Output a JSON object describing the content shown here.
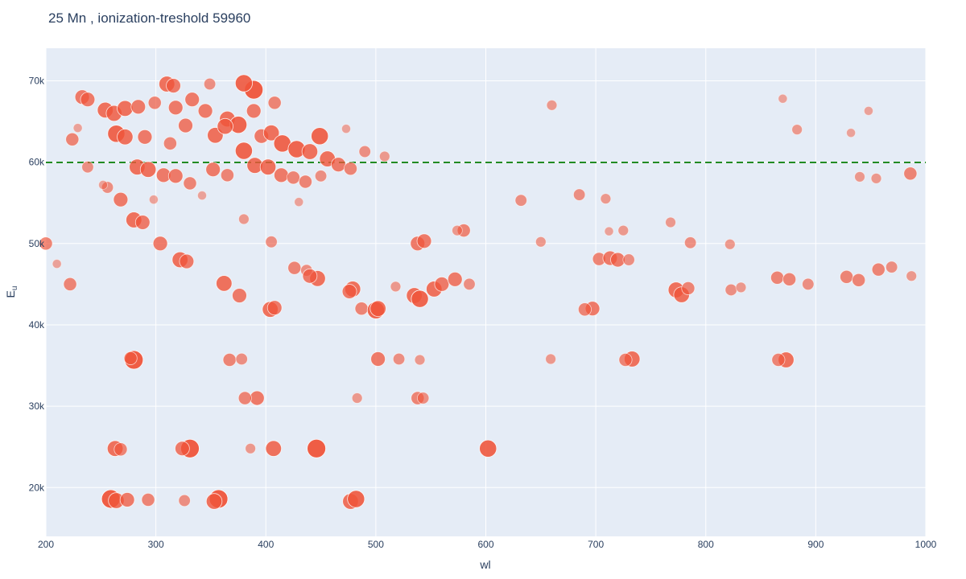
{
  "chart_data": {
    "type": "scatter",
    "title": "25 Mn , ionization-treshold 59960",
    "xlabel": "wl",
    "ylabel": "E",
    "ylabel_subscript": "u",
    "xlim": [
      200,
      1000
    ],
    "ylim": [
      14000,
      74000
    ],
    "x_ticks": [
      200,
      300,
      400,
      500,
      600,
      700,
      800,
      900,
      1000
    ],
    "x_tick_labels": [
      "200",
      "300",
      "400",
      "500",
      "600",
      "700",
      "800",
      "900",
      "1000"
    ],
    "y_ticks": [
      20000,
      30000,
      40000,
      50000,
      60000,
      70000
    ],
    "y_tick_labels": [
      "20k",
      "30k",
      "40k",
      "50k",
      "60k",
      "70k"
    ],
    "grid": true,
    "legend": "none",
    "threshold_line": {
      "y": 59960,
      "style": "dashed"
    },
    "colors": {
      "marker": "#EF553B",
      "threshold": "#228B22",
      "plot_bg": "#E5ECF6",
      "grid": "#ffffff",
      "text": "#2a3f5f"
    },
    "series": [
      {
        "points": [
          {
            "x": 280,
            "y": 35700,
            "s": 1.0
          },
          {
            "x": 277,
            "y": 35900,
            "s": 0.6
          },
          {
            "x": 331,
            "y": 24800,
            "s": 1.0
          },
          {
            "x": 324,
            "y": 24800,
            "s": 0.7
          },
          {
            "x": 263,
            "y": 24800,
            "s": 0.8
          },
          {
            "x": 268,
            "y": 24700,
            "s": 0.6
          },
          {
            "x": 407,
            "y": 24800,
            "s": 0.8
          },
          {
            "x": 446,
            "y": 24800,
            "s": 1.0
          },
          {
            "x": 602,
            "y": 24800,
            "s": 0.9
          },
          {
            "x": 386,
            "y": 24800,
            "s": 0.4
          },
          {
            "x": 259,
            "y": 18600,
            "s": 1.0
          },
          {
            "x": 264,
            "y": 18400,
            "s": 0.8
          },
          {
            "x": 274,
            "y": 18500,
            "s": 0.7
          },
          {
            "x": 293,
            "y": 18500,
            "s": 0.6
          },
          {
            "x": 357,
            "y": 18600,
            "s": 1.0
          },
          {
            "x": 353,
            "y": 18300,
            "s": 0.8
          },
          {
            "x": 326,
            "y": 18400,
            "s": 0.5
          },
          {
            "x": 477,
            "y": 18300,
            "s": 0.8
          },
          {
            "x": 482,
            "y": 18600,
            "s": 0.9
          },
          {
            "x": 389,
            "y": 68900,
            "s": 1.0
          },
          {
            "x": 380,
            "y": 69700,
            "s": 0.9
          },
          {
            "x": 310,
            "y": 69600,
            "s": 0.8
          },
          {
            "x": 316,
            "y": 69400,
            "s": 0.7
          },
          {
            "x": 349,
            "y": 69600,
            "s": 0.5
          },
          {
            "x": 233,
            "y": 68000,
            "s": 0.7
          },
          {
            "x": 238,
            "y": 67700,
            "s": 0.7
          },
          {
            "x": 254,
            "y": 66400,
            "s": 0.8
          },
          {
            "x": 262,
            "y": 66000,
            "s": 0.8
          },
          {
            "x": 272,
            "y": 66600,
            "s": 0.8
          },
          {
            "x": 284,
            "y": 66800,
            "s": 0.7
          },
          {
            "x": 299,
            "y": 67300,
            "s": 0.6
          },
          {
            "x": 318,
            "y": 66700,
            "s": 0.7
          },
          {
            "x": 333,
            "y": 67700,
            "s": 0.7
          },
          {
            "x": 345,
            "y": 66300,
            "s": 0.7
          },
          {
            "x": 365,
            "y": 65300,
            "s": 0.8
          },
          {
            "x": 375,
            "y": 64600,
            "s": 0.9
          },
          {
            "x": 389,
            "y": 66300,
            "s": 0.7
          },
          {
            "x": 408,
            "y": 67300,
            "s": 0.6
          },
          {
            "x": 264,
            "y": 63500,
            "s": 0.9
          },
          {
            "x": 272,
            "y": 63100,
            "s": 0.8
          },
          {
            "x": 290,
            "y": 63100,
            "s": 0.7
          },
          {
            "x": 313,
            "y": 62300,
            "s": 0.6
          },
          {
            "x": 327,
            "y": 64500,
            "s": 0.7
          },
          {
            "x": 354,
            "y": 63300,
            "s": 0.8
          },
          {
            "x": 363,
            "y": 64400,
            "s": 0.8
          },
          {
            "x": 380,
            "y": 61400,
            "s": 0.9
          },
          {
            "x": 396,
            "y": 63200,
            "s": 0.7
          },
          {
            "x": 405,
            "y": 63600,
            "s": 0.8
          },
          {
            "x": 415,
            "y": 62300,
            "s": 0.9
          },
          {
            "x": 428,
            "y": 61600,
            "s": 0.9
          },
          {
            "x": 440,
            "y": 61300,
            "s": 0.8
          },
          {
            "x": 449,
            "y": 63200,
            "s": 0.9
          },
          {
            "x": 456,
            "y": 60400,
            "s": 0.8
          },
          {
            "x": 466,
            "y": 59700,
            "s": 0.7
          },
          {
            "x": 477,
            "y": 59200,
            "s": 0.6
          },
          {
            "x": 490,
            "y": 61300,
            "s": 0.5
          },
          {
            "x": 508,
            "y": 60700,
            "s": 0.4
          },
          {
            "x": 224,
            "y": 62800,
            "s": 0.6
          },
          {
            "x": 238,
            "y": 59400,
            "s": 0.5
          },
          {
            "x": 283,
            "y": 59400,
            "s": 0.8
          },
          {
            "x": 293,
            "y": 59100,
            "s": 0.8
          },
          {
            "x": 307,
            "y": 58400,
            "s": 0.7
          },
          {
            "x": 318,
            "y": 58300,
            "s": 0.7
          },
          {
            "x": 331,
            "y": 57400,
            "s": 0.6
          },
          {
            "x": 352,
            "y": 59100,
            "s": 0.7
          },
          {
            "x": 365,
            "y": 58400,
            "s": 0.6
          },
          {
            "x": 390,
            "y": 59600,
            "s": 0.8
          },
          {
            "x": 402,
            "y": 59400,
            "s": 0.8
          },
          {
            "x": 414,
            "y": 58400,
            "s": 0.7
          },
          {
            "x": 425,
            "y": 58100,
            "s": 0.6
          },
          {
            "x": 436,
            "y": 57600,
            "s": 0.6
          },
          {
            "x": 450,
            "y": 58300,
            "s": 0.5
          },
          {
            "x": 268,
            "y": 55400,
            "s": 0.7
          },
          {
            "x": 256,
            "y": 56900,
            "s": 0.5
          },
          {
            "x": 280,
            "y": 52900,
            "s": 0.8
          },
          {
            "x": 288,
            "y": 52600,
            "s": 0.7
          },
          {
            "x": 304,
            "y": 50000,
            "s": 0.7
          },
          {
            "x": 322,
            "y": 48000,
            "s": 0.8
          },
          {
            "x": 328,
            "y": 47800,
            "s": 0.7
          },
          {
            "x": 362,
            "y": 45100,
            "s": 0.8
          },
          {
            "x": 376,
            "y": 43600,
            "s": 0.7
          },
          {
            "x": 404,
            "y": 41900,
            "s": 0.8
          },
          {
            "x": 408,
            "y": 42100,
            "s": 0.7
          },
          {
            "x": 222,
            "y": 45000,
            "s": 0.6
          },
          {
            "x": 200,
            "y": 50000,
            "s": 0.6
          },
          {
            "x": 210,
            "y": 47500,
            "s": 0.3
          },
          {
            "x": 405,
            "y": 50200,
            "s": 0.5
          },
          {
            "x": 380,
            "y": 53000,
            "s": 0.4
          },
          {
            "x": 426,
            "y": 47000,
            "s": 0.6
          },
          {
            "x": 437,
            "y": 46700,
            "s": 0.5
          },
          {
            "x": 447,
            "y": 45700,
            "s": 0.8
          },
          {
            "x": 440,
            "y": 46000,
            "s": 0.7
          },
          {
            "x": 479,
            "y": 44400,
            "s": 0.8
          },
          {
            "x": 476,
            "y": 44100,
            "s": 0.7
          },
          {
            "x": 487,
            "y": 42000,
            "s": 0.6
          },
          {
            "x": 500,
            "y": 41800,
            "s": 0.9
          },
          {
            "x": 502,
            "y": 42000,
            "s": 0.8
          },
          {
            "x": 518,
            "y": 44700,
            "s": 0.4
          },
          {
            "x": 535,
            "y": 43600,
            "s": 0.8
          },
          {
            "x": 540,
            "y": 43200,
            "s": 0.9
          },
          {
            "x": 553,
            "y": 44400,
            "s": 0.8
          },
          {
            "x": 560,
            "y": 45000,
            "s": 0.7
          },
          {
            "x": 572,
            "y": 45600,
            "s": 0.7
          },
          {
            "x": 585,
            "y": 45000,
            "s": 0.5
          },
          {
            "x": 538,
            "y": 50000,
            "s": 0.7
          },
          {
            "x": 544,
            "y": 50300,
            "s": 0.7
          },
          {
            "x": 580,
            "y": 51600,
            "s": 0.6
          },
          {
            "x": 574,
            "y": 51600,
            "s": 0.4
          },
          {
            "x": 632,
            "y": 55300,
            "s": 0.5
          },
          {
            "x": 685,
            "y": 56000,
            "s": 0.5
          },
          {
            "x": 709,
            "y": 55500,
            "s": 0.4
          },
          {
            "x": 650,
            "y": 50200,
            "s": 0.4
          },
          {
            "x": 697,
            "y": 42000,
            "s": 0.7
          },
          {
            "x": 690,
            "y": 41900,
            "s": 0.6
          },
          {
            "x": 703,
            "y": 48100,
            "s": 0.6
          },
          {
            "x": 713,
            "y": 48200,
            "s": 0.7
          },
          {
            "x": 720,
            "y": 48000,
            "s": 0.7
          },
          {
            "x": 730,
            "y": 48000,
            "s": 0.5
          },
          {
            "x": 725,
            "y": 51600,
            "s": 0.4
          },
          {
            "x": 712,
            "y": 51500,
            "s": 0.3
          },
          {
            "x": 768,
            "y": 52600,
            "s": 0.4
          },
          {
            "x": 786,
            "y": 50100,
            "s": 0.5
          },
          {
            "x": 822,
            "y": 49900,
            "s": 0.4
          },
          {
            "x": 773,
            "y": 44300,
            "s": 0.8
          },
          {
            "x": 778,
            "y": 43700,
            "s": 0.8
          },
          {
            "x": 784,
            "y": 44500,
            "s": 0.6
          },
          {
            "x": 823,
            "y": 44300,
            "s": 0.5
          },
          {
            "x": 832,
            "y": 44600,
            "s": 0.4
          },
          {
            "x": 865,
            "y": 45800,
            "s": 0.6
          },
          {
            "x": 876,
            "y": 45600,
            "s": 0.6
          },
          {
            "x": 893,
            "y": 45000,
            "s": 0.5
          },
          {
            "x": 928,
            "y": 45900,
            "s": 0.6
          },
          {
            "x": 939,
            "y": 45500,
            "s": 0.6
          },
          {
            "x": 957,
            "y": 46800,
            "s": 0.6
          },
          {
            "x": 969,
            "y": 47100,
            "s": 0.5
          },
          {
            "x": 987,
            "y": 46000,
            "s": 0.4
          },
          {
            "x": 733,
            "y": 35800,
            "s": 0.8
          },
          {
            "x": 727,
            "y": 35700,
            "s": 0.6
          },
          {
            "x": 873,
            "y": 35700,
            "s": 0.8
          },
          {
            "x": 866,
            "y": 35700,
            "s": 0.6
          },
          {
            "x": 502,
            "y": 35800,
            "s": 0.7
          },
          {
            "x": 521,
            "y": 35800,
            "s": 0.5
          },
          {
            "x": 540,
            "y": 35700,
            "s": 0.4
          },
          {
            "x": 367,
            "y": 35700,
            "s": 0.6
          },
          {
            "x": 378,
            "y": 35800,
            "s": 0.5
          },
          {
            "x": 659,
            "y": 35800,
            "s": 0.4
          },
          {
            "x": 392,
            "y": 31000,
            "s": 0.7
          },
          {
            "x": 381,
            "y": 31000,
            "s": 0.6
          },
          {
            "x": 538,
            "y": 31000,
            "s": 0.6
          },
          {
            "x": 543,
            "y": 31000,
            "s": 0.5
          },
          {
            "x": 483,
            "y": 31000,
            "s": 0.4
          },
          {
            "x": 986,
            "y": 58600,
            "s": 0.6
          },
          {
            "x": 955,
            "y": 58000,
            "s": 0.4
          },
          {
            "x": 940,
            "y": 58200,
            "s": 0.4
          },
          {
            "x": 870,
            "y": 67800,
            "s": 0.3
          },
          {
            "x": 883,
            "y": 64000,
            "s": 0.4
          },
          {
            "x": 660,
            "y": 67000,
            "s": 0.4
          },
          {
            "x": 473,
            "y": 64100,
            "s": 0.3
          },
          {
            "x": 932,
            "y": 63600,
            "s": 0.3
          },
          {
            "x": 948,
            "y": 66300,
            "s": 0.3
          },
          {
            "x": 229,
            "y": 64200,
            "s": 0.3
          },
          {
            "x": 252,
            "y": 57200,
            "s": 0.3
          },
          {
            "x": 298,
            "y": 55400,
            "s": 0.3
          },
          {
            "x": 342,
            "y": 55900,
            "s": 0.3
          },
          {
            "x": 430,
            "y": 55100,
            "s": 0.3
          }
        ]
      }
    ]
  }
}
